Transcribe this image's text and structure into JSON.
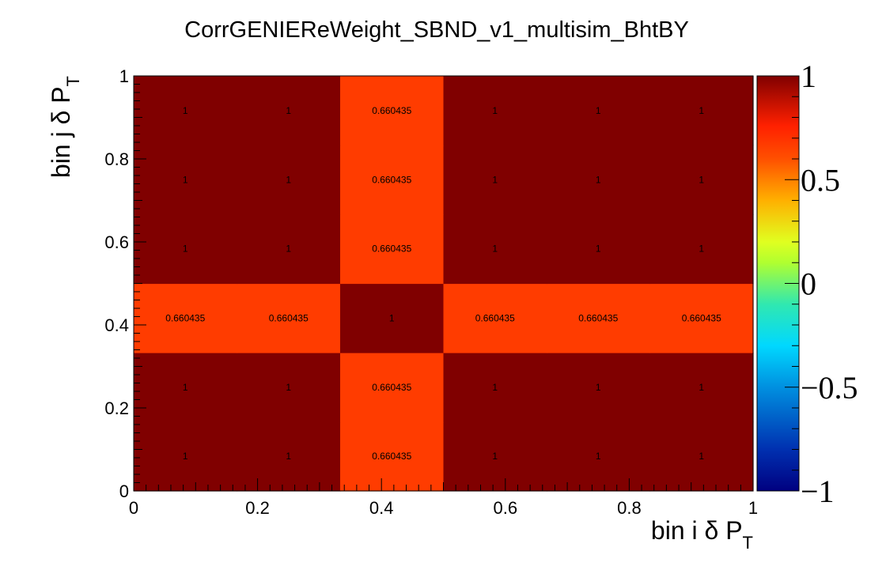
{
  "chart_data": {
    "type": "heatmap",
    "title": "CorrGENIEReWeight_SBND_v1_multisim_BhtBY",
    "xlabel": "bin i δ P",
    "xlabel_sub": "T",
    "ylabel": "bin j δ P",
    "ylabel_sub": "T",
    "xlim": [
      0,
      1
    ],
    "ylim": [
      0,
      1
    ],
    "x_edges": [
      0,
      0.1667,
      0.3333,
      0.5,
      0.6667,
      0.8333,
      1
    ],
    "y_edges": [
      0,
      0.1667,
      0.3333,
      0.5,
      0.6667,
      0.8333,
      1
    ],
    "x_ticks": [
      "0",
      "0.2",
      "0.4",
      "0.6",
      "0.8",
      "1"
    ],
    "y_ticks": [
      "0",
      "0.2",
      "0.4",
      "0.6",
      "0.8",
      "1"
    ],
    "zlim": [
      -1,
      1
    ],
    "z_ticks": [
      "1",
      "0.5",
      "0",
      "−0.5",
      "−1"
    ],
    "values": [
      [
        1,
        1,
        0.660435,
        1,
        1,
        1
      ],
      [
        1,
        1,
        0.660435,
        1,
        1,
        1
      ],
      [
        0.660435,
        0.660435,
        1,
        0.660435,
        0.660435,
        0.660435
      ],
      [
        1,
        1,
        0.660435,
        1,
        1,
        1
      ],
      [
        1,
        1,
        0.660435,
        1,
        1,
        1
      ],
      [
        1,
        1,
        0.660435,
        1,
        1,
        1
      ]
    ],
    "cell_labels": [
      [
        "1",
        "1",
        "0.660435",
        "1",
        "1",
        "1"
      ],
      [
        "1",
        "1",
        "0.660435",
        "1",
        "1",
        "1"
      ],
      [
        "0.660435",
        "0.660435",
        "1",
        "0.660435",
        "0.660435",
        "0.660435"
      ],
      [
        "1",
        "1",
        "0.660435",
        "1",
        "1",
        "1"
      ],
      [
        "1",
        "1",
        "0.660435",
        "1",
        "1",
        "1"
      ],
      [
        "1",
        "1",
        "0.660435",
        "1",
        "1",
        "1"
      ]
    ],
    "colors": {
      "value_1": "#800000",
      "value_0660435": "#ff3c00",
      "palette": [
        "#000080",
        "#0050d0",
        "#00c8ff",
        "#40ff80",
        "#d0ff20",
        "#ffa000",
        "#ff3000",
        "#800000"
      ]
    },
    "grid": false
  }
}
